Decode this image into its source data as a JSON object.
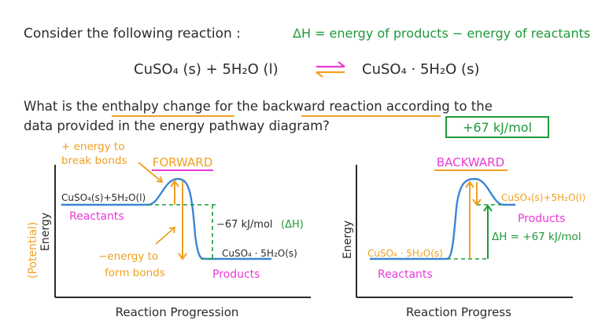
{
  "header": {
    "consider": "Consider the following reaction :",
    "delta_h_def": "ΔH = energy of products − energy of reactants"
  },
  "equation": {
    "left": "CuSO₄ (s)  +  5H₂O (l)",
    "right": "CuSO₄ · 5H₂O (s)"
  },
  "question": {
    "line1": "What is the enthalpy change for the backward reaction according to the",
    "line2": "data provided in the energy pathway diagram?",
    "answer": "+67 kJ/mol"
  },
  "forward_diagram": {
    "title": "FORWARD",
    "y_axis": "Energy",
    "y_axis_prefix": "(Potential)",
    "x_axis": "Reaction Progression",
    "reactant_formula": "CuSO₄(s)+5H₂O(l)",
    "reactant_label": "Reactants",
    "product_formula": "CuSO₄ · 5H₂O(s)",
    "product_label": "Products",
    "delta_h": "−67 kJ/mol",
    "delta_h_symbol": "(ΔH)",
    "energy_in_note_1": "+ energy to",
    "energy_in_note_2": "break bonds",
    "energy_out_note_1": "−energy to",
    "energy_out_note_2": "form bonds"
  },
  "backward_diagram": {
    "title": "BACKWARD",
    "y_axis": "Energy",
    "x_axis": "Reaction Progress",
    "reactant_formula": "CuSO₄ · 5H₂O(s)",
    "reactant_label": "Reactants",
    "product_formula": "CuSO₄(s)+5H₂O(l)",
    "product_label": "Products",
    "delta_h": "ΔH = +67 kJ/mol"
  },
  "colors": {
    "text": "#2b2b2b",
    "green": "#1f9a3a",
    "orange": "#f0a020",
    "magenta": "#e83ad6",
    "blue_curve": "#3b86d6"
  }
}
